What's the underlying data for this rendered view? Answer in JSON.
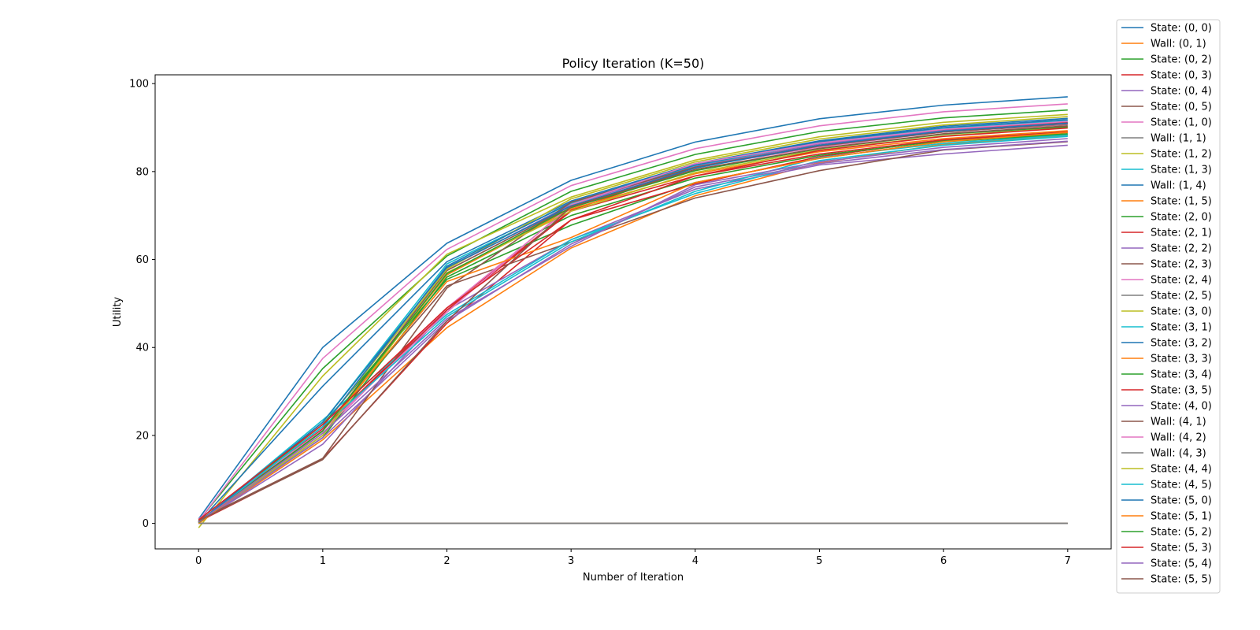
{
  "chart_data": {
    "type": "line",
    "title": "Policy Iteration (K=50)",
    "xlabel": "Number of Iteration",
    "ylabel": "Utility",
    "xlim": [
      -0.35,
      7.35
    ],
    "ylim": [
      -5.8,
      102
    ],
    "xticks": [
      0,
      1,
      2,
      3,
      4,
      5,
      6,
      7
    ],
    "yticks": [
      0,
      20,
      40,
      60,
      80,
      100
    ],
    "grid": false,
    "legend_position": "outside-right",
    "x": [
      0,
      1,
      2,
      3,
      4,
      5,
      6,
      7
    ],
    "palette": [
      "#1f77b4",
      "#ff7f0e",
      "#2ca02c",
      "#d62728",
      "#9467bd",
      "#8c564b",
      "#e377c2",
      "#7f7f7f",
      "#bcbd22",
      "#17becf"
    ],
    "series": [
      {
        "name": "State: (0, 0)",
        "values": [
          1.0,
          40.0,
          63.7,
          78.0,
          86.7,
          92.0,
          95.1,
          97.0
        ]
      },
      {
        "name": "Wall: (0, 1)",
        "values": [
          0,
          0,
          0,
          0,
          0,
          0,
          0,
          0
        ]
      },
      {
        "name": "State: (0, 2)",
        "values": [
          0.6,
          35.2,
          60.8,
          75.5,
          83.9,
          89.1,
          92.2,
          94.0
        ]
      },
      {
        "name": "State: (0, 3)",
        "values": [
          0.2,
          21.5,
          49.0,
          71.2,
          80.9,
          86.0,
          89.5,
          91.2
        ]
      },
      {
        "name": "State: (0, 4)",
        "values": [
          0.1,
          20.0,
          58.0,
          72.5,
          81.2,
          86.3,
          89.3,
          91.0
        ]
      },
      {
        "name": "State: (0, 5)",
        "values": [
          0.3,
          21.0,
          57.5,
          72.0,
          81.0,
          86.0,
          89.0,
          90.7
        ]
      },
      {
        "name": "State: (1, 0)",
        "values": [
          0.5,
          37.5,
          62.3,
          76.8,
          85.2,
          90.4,
          93.6,
          95.4
        ]
      },
      {
        "name": "Wall: (1, 1)",
        "values": [
          0,
          0,
          0,
          0,
          0,
          0,
          0,
          0
        ]
      },
      {
        "name": "State: (1, 2)",
        "values": [
          -1.0,
          33.5,
          61.2,
          74.2,
          82.6,
          87.9,
          91.2,
          93.0
        ]
      },
      {
        "name": "State: (1, 3)",
        "values": [
          0.2,
          23.0,
          59.0,
          72.8,
          81.4,
          86.6,
          89.8,
          91.6
        ]
      },
      {
        "name": "Wall: (1, 4)",
        "values": [
          0.2,
          31.2,
          59.5,
          73.3,
          81.8,
          87.0,
          90.3,
          92.1
        ]
      },
      {
        "name": "State: (1, 5)",
        "values": [
          0.0,
          19.0,
          44.5,
          62.6,
          74.5,
          82.0,
          86.2,
          88.2
        ]
      },
      {
        "name": "State: (2, 0)",
        "values": [
          0.3,
          22.5,
          55.5,
          67.8,
          77.5,
          83.0,
          86.8,
          88.4
        ]
      },
      {
        "name": "State: (2, 1)",
        "values": [
          0.4,
          14.7,
          45.5,
          69.0,
          77.2,
          83.4,
          87.2,
          89.0
        ]
      },
      {
        "name": "State: (2, 2)",
        "values": [
          0.2,
          18.0,
          48.5,
          64.5,
          76.0,
          81.5,
          84.0,
          86.0
        ]
      },
      {
        "name": "State: (2, 3)",
        "values": [
          0.0,
          21.5,
          54.0,
          64.0,
          74.0,
          80.2,
          84.9,
          86.8
        ]
      },
      {
        "name": "State: (2, 4)",
        "values": [
          0.3,
          20.5,
          49.0,
          72.0,
          81.0,
          85.6,
          89.0,
          90.8
        ]
      },
      {
        "name": "State: (2, 5)",
        "values": [
          0,
          0,
          0,
          0,
          0,
          0,
          0,
          0
        ]
      },
      {
        "name": "State: (3, 0)",
        "values": [
          0.4,
          22.0,
          57.8,
          73.8,
          82.2,
          87.4,
          90.6,
          92.5
        ]
      },
      {
        "name": "State: (3, 1)",
        "values": [
          0.2,
          23.5,
          47.5,
          64.5,
          75.0,
          82.5,
          86.0,
          88.0
        ]
      },
      {
        "name": "State: (3, 2)",
        "values": [
          0.3,
          22.0,
          58.5,
          73.0,
          81.5,
          86.8,
          90.0,
          91.8
        ]
      },
      {
        "name": "State: (3, 3)",
        "values": [
          0.2,
          21.0,
          56.5,
          71.5,
          79.5,
          84.5,
          87.5,
          89.3
        ]
      },
      {
        "name": "State: (3, 4)",
        "values": [
          0.2,
          19.5,
          56.0,
          70.0,
          78.5,
          83.7,
          87.0,
          88.6
        ]
      },
      {
        "name": "State: (3, 5)",
        "values": [
          0.3,
          21.5,
          48.5,
          71.0,
          79.0,
          84.0,
          87.2,
          89.0
        ]
      },
      {
        "name": "State: (4, 0)",
        "values": [
          0.1,
          19.5,
          46.0,
          63.5,
          76.5,
          81.8,
          85.0,
          86.9
        ]
      },
      {
        "name": "Wall: (4, 1)",
        "values": [
          0.8,
          14.8,
          53.5,
          73.0,
          81.0,
          85.8,
          89.0,
          90.9
        ]
      },
      {
        "name": "Wall: (4, 2)",
        "values": [
          1.0,
          21.2,
          48.0,
          72.5,
          81.8,
          86.5,
          89.6,
          91.4
        ]
      },
      {
        "name": "Wall: (4, 3)",
        "values": [
          0,
          0,
          0,
          0,
          0,
          0,
          0,
          0
        ]
      },
      {
        "name": "State: (4, 4)",
        "values": [
          0.3,
          20.0,
          57.0,
          71.0,
          79.8,
          84.9,
          88.1,
          90.0
        ]
      },
      {
        "name": "State: (4, 5)",
        "values": [
          0.2,
          22.0,
          47.0,
          64.0,
          75.5,
          83.2,
          86.4,
          88.3
        ]
      },
      {
        "name": "State: (5, 0)",
        "values": [
          0.2,
          23.0,
          58.2,
          72.2,
          80.8,
          86.0,
          89.2,
          91.0
        ]
      },
      {
        "name": "State: (5, 1)",
        "values": [
          0.0,
          21.0,
          55.0,
          65.0,
          77.5,
          83.0,
          86.8,
          88.9
        ]
      },
      {
        "name": "State: (5, 2)",
        "values": [
          0.2,
          21.0,
          56.8,
          71.8,
          80.2,
          85.2,
          88.5,
          90.2
        ]
      },
      {
        "name": "State: (5, 3)",
        "values": [
          0.8,
          22.5,
          49.0,
          69.0,
          79.0,
          84.8,
          88.0,
          89.9
        ]
      },
      {
        "name": "State: (5, 4)",
        "values": [
          0.3,
          20.5,
          46.5,
          63.0,
          77.0,
          82.2,
          85.5,
          87.5
        ]
      },
      {
        "name": "State: (5, 5)",
        "values": [
          0.6,
          14.5,
          46.0,
          72.0,
          80.5,
          85.3,
          88.6,
          90.4
        ]
      }
    ]
  }
}
